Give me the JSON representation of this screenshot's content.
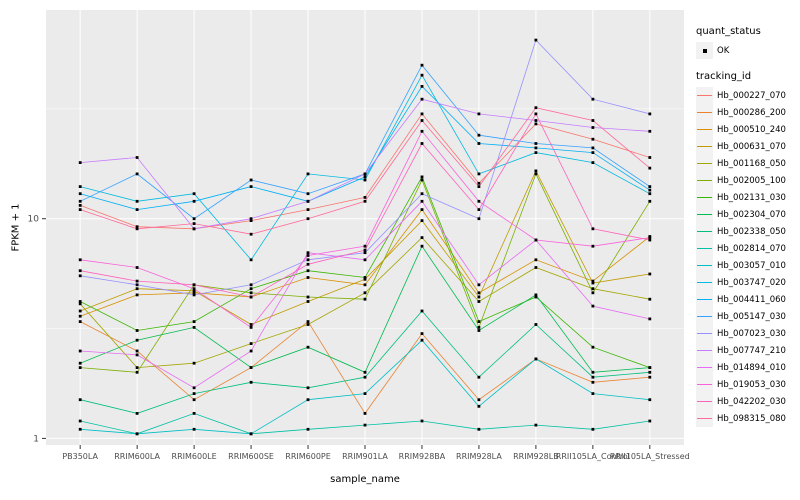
{
  "chart_data": {
    "type": "line",
    "title": "",
    "xlabel": "sample_name",
    "ylabel": "FPKM + 1",
    "y_scale": "log10",
    "y_ticks": [
      1,
      10
    ],
    "ylim_log": [
      -0.03,
      1.95
    ],
    "grid": true,
    "panel_bg": "#EBEBEB",
    "grid_color": "#FFFFFF",
    "tick_label_color": "#4D4D4D",
    "point_color": "#000000",
    "legend_position": "right",
    "categories": [
      "PB350LA",
      "RRIM600LA",
      "RRIM600LE",
      "RRIM600SE",
      "RRIM600PE",
      "RRIM901LA",
      "RRIM928BA",
      "RRIM928LA",
      "RRIM928LB",
      "RRII105LA_Control",
      "RRII105LA_Stressed"
    ],
    "legend": {
      "quant_status": {
        "title": "quant_status",
        "items": [
          {
            "label": "OK",
            "symbol": "black-point"
          }
        ]
      },
      "tracking_id": {
        "title": "tracking_id"
      }
    },
    "series": [
      {
        "name": "Hb_000227_070",
        "color": "#F8766D",
        "values": [
          11.5,
          9.2,
          9.0,
          9.8,
          11.0,
          12.5,
          30.0,
          14.5,
          27.0,
          23.0,
          19.0
        ]
      },
      {
        "name": "Hb_000286_200",
        "color": "#EA8331",
        "values": [
          3.4,
          2.5,
          1.5,
          2.1,
          3.4,
          1.3,
          3.0,
          1.5,
          2.3,
          1.8,
          1.9
        ]
      },
      {
        "name": "Hb_000510_240",
        "color": "#D89000",
        "values": [
          3.6,
          4.5,
          4.6,
          4.4,
          5.4,
          5.0,
          11.0,
          4.6,
          6.5,
          5.2,
          8.3
        ]
      },
      {
        "name": "Hb_000631_070",
        "color": "#C09B00",
        "values": [
          3.8,
          4.8,
          4.7,
          3.3,
          4.2,
          5.3,
          9.8,
          4.4,
          16.5,
          5.1,
          5.6
        ]
      },
      {
        "name": "Hb_001168_050",
        "color": "#A3A500",
        "values": [
          4.1,
          2.1,
          2.2,
          2.7,
          3.3,
          4.6,
          8.2,
          4.2,
          6.0,
          4.8,
          4.3
        ]
      },
      {
        "name": "Hb_002005_100",
        "color": "#7CAE00",
        "values": [
          2.1,
          2.0,
          5.0,
          4.6,
          4.4,
          4.3,
          15.0,
          3.2,
          16.0,
          4.6,
          12.0
        ]
      },
      {
        "name": "Hb_002131_030",
        "color": "#39B600",
        "values": [
          4.2,
          3.1,
          3.4,
          4.8,
          5.8,
          5.4,
          15.5,
          3.4,
          4.4,
          2.6,
          2.1
        ]
      },
      {
        "name": "Hb_002304_070",
        "color": "#00BB4E",
        "values": [
          2.2,
          2.8,
          3.2,
          2.1,
          2.6,
          2.0,
          7.5,
          3.1,
          4.5,
          2.0,
          2.1
        ]
      },
      {
        "name": "Hb_002338_050",
        "color": "#00BF7D",
        "values": [
          1.5,
          1.3,
          1.6,
          1.8,
          1.7,
          1.9,
          3.8,
          1.9,
          3.3,
          1.9,
          2.0
        ]
      },
      {
        "name": "Hb_002814_070",
        "color": "#00C1A3",
        "values": [
          1.2,
          1.05,
          1.3,
          1.05,
          1.1,
          1.15,
          1.2,
          1.1,
          1.15,
          1.1,
          1.2
        ]
      },
      {
        "name": "Hb_003057_010",
        "color": "#00BFC4",
        "values": [
          1.1,
          1.05,
          1.1,
          1.05,
          1.5,
          1.6,
          2.8,
          1.4,
          2.3,
          1.6,
          1.5
        ]
      },
      {
        "name": "Hb_003747_020",
        "color": "#00BAE0",
        "values": [
          14,
          12,
          13,
          6.5,
          16,
          15,
          45,
          16,
          20,
          18,
          13
        ]
      },
      {
        "name": "Hb_004411_060",
        "color": "#00B0F6",
        "values": [
          13,
          11,
          12,
          14,
          12,
          15.5,
          40,
          22,
          21,
          20,
          13.5
        ]
      },
      {
        "name": "Hb_005147_030",
        "color": "#35A2FF",
        "values": [
          12,
          16,
          10,
          15,
          13,
          16,
          50,
          24,
          22,
          21,
          14
        ]
      },
      {
        "name": "Hb_007023_030",
        "color": "#9590FF",
        "values": [
          5.5,
          5.0,
          4.5,
          5.0,
          6.5,
          7.0,
          13,
          10,
          65,
          35,
          30
        ]
      },
      {
        "name": "Hb_007747_210",
        "color": "#C77CFF",
        "values": [
          18,
          19,
          9.0,
          10,
          12,
          16,
          35,
          30,
          28,
          26,
          25
        ]
      },
      {
        "name": "Hb_014894_010",
        "color": "#E76BF3",
        "values": [
          2.5,
          2.4,
          1.7,
          2.5,
          7.0,
          6.5,
          12,
          5.0,
          8.0,
          4.0,
          3.5
        ]
      },
      {
        "name": "Hb_019053_030",
        "color": "#FA62DB",
        "values": [
          6.5,
          6.0,
          4.8,
          3.2,
          6.8,
          7.5,
          25,
          12,
          8.0,
          7.5,
          8.2
        ]
      },
      {
        "name": "Hb_042202_030",
        "color": "#FF62BC",
        "values": [
          5.8,
          5.2,
          5.0,
          4.4,
          6.2,
          7.2,
          22,
          11,
          30,
          9.0,
          8.0
        ]
      },
      {
        "name": "Hb_098315_080",
        "color": "#FF6A98",
        "values": [
          11,
          9.0,
          9.5,
          8.5,
          10,
          12,
          28,
          14,
          32,
          28,
          17
        ]
      }
    ]
  }
}
